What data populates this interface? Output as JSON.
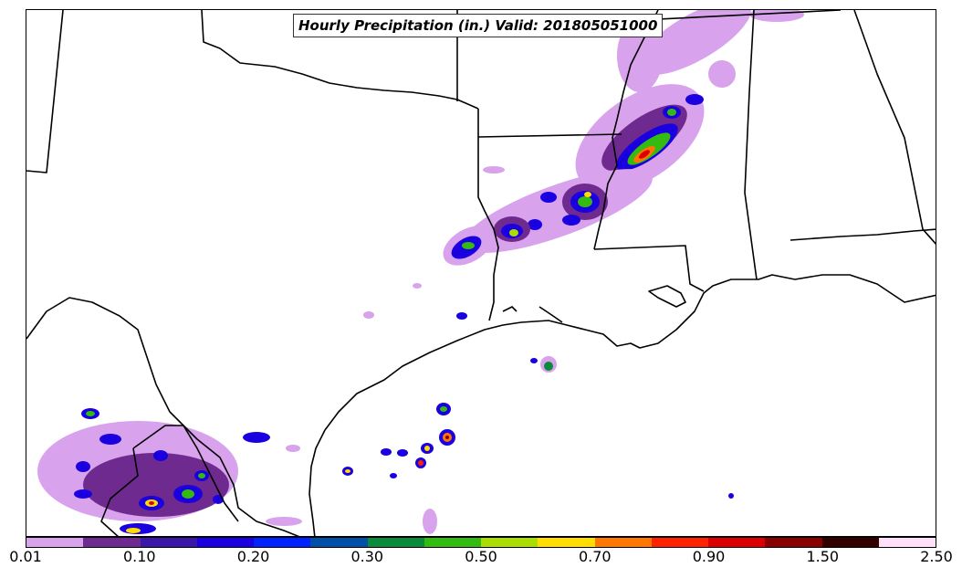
{
  "title": "Hourly Precipitation (in.) Valid: 201805051000",
  "colorbar": {
    "colors": [
      "#d8a2ec",
      "#6f2a8f",
      "#3b17a8",
      "#1a00e0",
      "#0022ff",
      "#0050a8",
      "#0a8a3a",
      "#33bb11",
      "#aadd00",
      "#ffdd00",
      "#ff7700",
      "#ff2200",
      "#dd0000",
      "#880000",
      "#330000",
      "#ffe0f8"
    ],
    "tick_labels": [
      "0.01",
      "0.10",
      "0.20",
      "0.30",
      "0.50",
      "0.70",
      "0.90",
      "1.50",
      "2.50"
    ]
  }
}
